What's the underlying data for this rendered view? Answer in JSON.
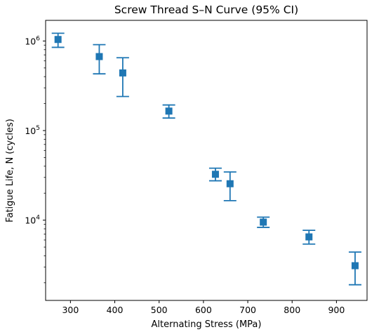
{
  "chart_data": {
    "type": "scatter",
    "title": "Screw Thread S–N Curve (95% CI)",
    "xlabel": "Alternating Stress (MPa)",
    "ylabel": "Fatigue Life, N (cycles)",
    "xlim": [
      244,
      969
    ],
    "ylim": [
      1270,
      1700000
    ],
    "yscale": "log",
    "grid": false,
    "marker": "square",
    "color": "#1f77b4",
    "x_ticks": [
      300,
      400,
      500,
      600,
      700,
      800,
      900
    ],
    "y_ticks": [
      10000,
      100000,
      1000000
    ],
    "y_tick_labels": [
      {
        "base": "10",
        "exp": "4"
      },
      {
        "base": "10",
        "exp": "5"
      },
      {
        "base": "10",
        "exp": "6"
      }
    ],
    "points": [
      {
        "x": 272,
        "y": 1040000,
        "lower": 850000,
        "upper": 1220000
      },
      {
        "x": 365,
        "y": 670000,
        "lower": 430000,
        "upper": 910000
      },
      {
        "x": 418,
        "y": 440000,
        "lower": 240000,
        "upper": 650000
      },
      {
        "x": 522,
        "y": 165000,
        "lower": 138000,
        "upper": 193000
      },
      {
        "x": 627,
        "y": 32500,
        "lower": 27500,
        "upper": 38000
      },
      {
        "x": 660,
        "y": 25500,
        "lower": 16500,
        "upper": 34500
      },
      {
        "x": 735,
        "y": 9500,
        "lower": 8300,
        "upper": 10800
      },
      {
        "x": 838,
        "y": 6500,
        "lower": 5400,
        "upper": 7700
      },
      {
        "x": 942,
        "y": 3100,
        "lower": 1900,
        "upper": 4400
      }
    ]
  }
}
